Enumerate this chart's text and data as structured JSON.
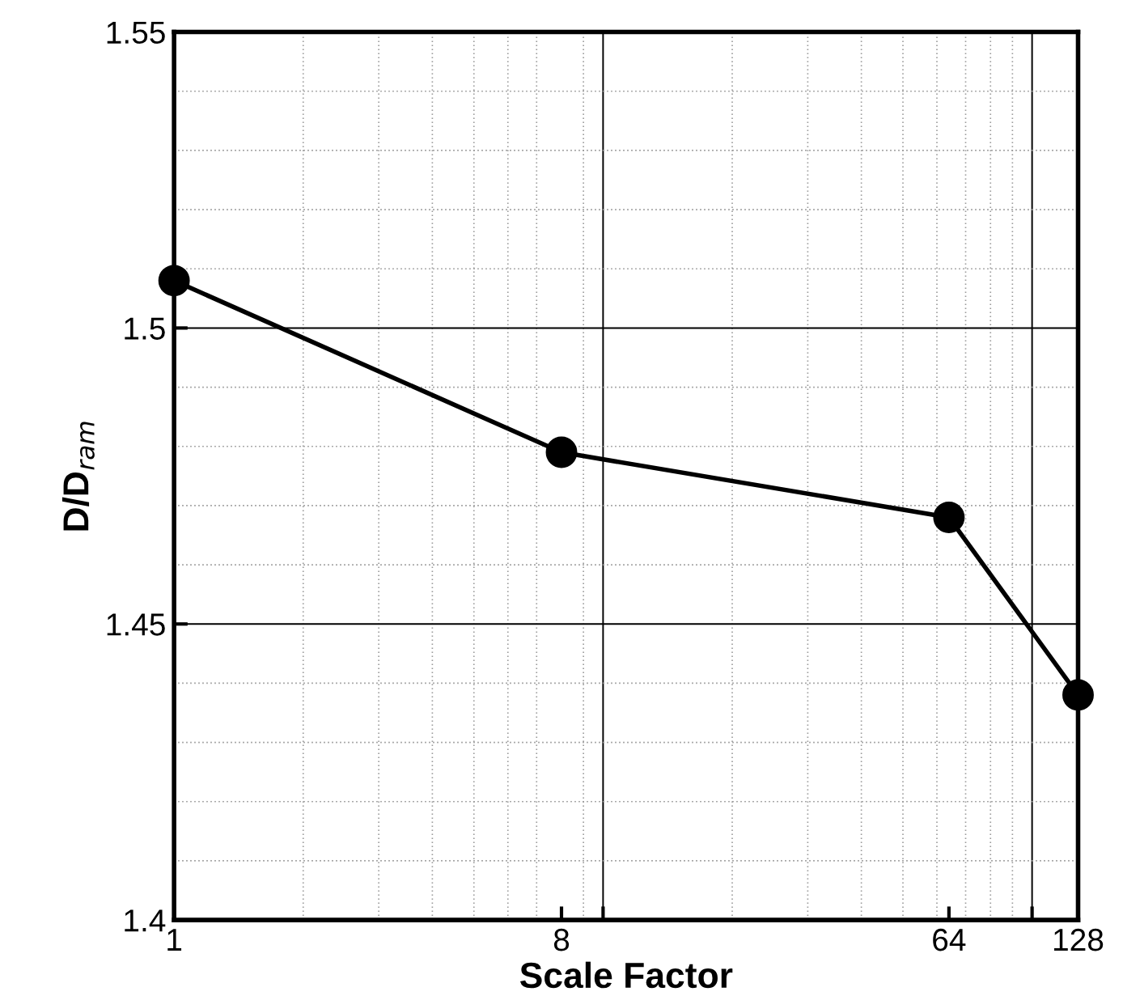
{
  "chart_data": {
    "type": "line",
    "xlabel": "Scale Factor",
    "ylabel": "D/D$_{ram}$",
    "x": [
      1,
      8,
      64,
      128
    ],
    "series": [
      {
        "color": "#000000",
        "values": [
          1.508,
          1.479,
          1.468,
          1.438
        ]
      }
    ],
    "log": "x",
    "xlim": [
      1,
      128
    ],
    "ylim": [
      1.4,
      1.55
    ],
    "xticks": [
      1,
      8,
      {
        "value": 10,
        "label": null
      },
      64,
      {
        "value": 100,
        "label": null
      },
      128
    ],
    "yticks": [
      1.4,
      1.45,
      1.5,
      1.55
    ],
    "grid": true,
    "marker": "circle",
    "line_style": "solid"
  }
}
